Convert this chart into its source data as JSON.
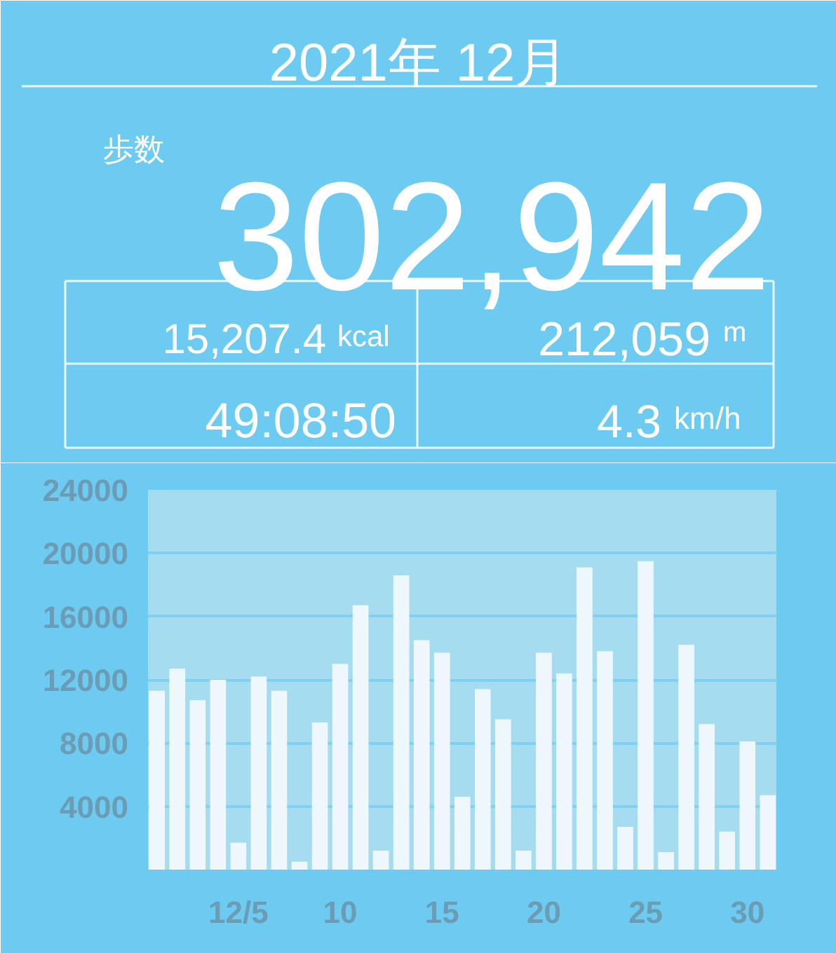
{
  "chart_data": [
    {
      "type": "other",
      "title": "2021年 12月",
      "annotations": [
        "歩数",
        "302,942",
        "15,207.4",
        "kcal",
        "212,059",
        "m",
        "49:08:50",
        "4.3",
        "km/h"
      ]
    },
    {
      "type": "bar",
      "categories": [
        null,
        null,
        null,
        null,
        "12/5",
        null,
        null,
        null,
        null,
        "10",
        null,
        null,
        null,
        null,
        "15",
        null,
        null,
        null,
        null,
        "20",
        null,
        null,
        null,
        null,
        "25",
        null,
        null,
        null,
        null,
        "30",
        null
      ],
      "values": [
        11300,
        12700,
        10700,
        12000,
        1700,
        12200,
        11300,
        500,
        9300,
        13000,
        16700,
        1200,
        18600,
        14500,
        13700,
        4600,
        11400,
        9500,
        1200,
        13700,
        12400,
        19100,
        13800,
        2700,
        19500,
        1100,
        14200,
        9200,
        2400,
        8100,
        4700
      ],
      "color": "#eef8fc",
      "ylim": [
        0,
        24000
      ],
      "yticks": [
        4000,
        8000,
        12000,
        16000,
        20000,
        24000
      ],
      "grid": "y"
    }
  ]
}
